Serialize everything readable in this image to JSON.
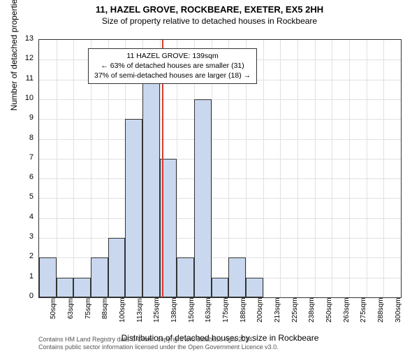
{
  "title_main": "11, HAZEL GROVE, ROCKBEARE, EXETER, EX5 2HH",
  "title_sub": "Size of property relative to detached houses in Rockbeare",
  "ylabel": "Number of detached properties",
  "xlabel": "Distribution of detached houses by size in Rockbeare",
  "chart": {
    "type": "histogram",
    "ylim": [
      0,
      13
    ],
    "ytick_step": 1,
    "x_categories": [
      "50sqm",
      "63sqm",
      "75sqm",
      "88sqm",
      "100sqm",
      "113sqm",
      "125sqm",
      "138sqm",
      "150sqm",
      "163sqm",
      "175sqm",
      "188sqm",
      "200sqm",
      "213sqm",
      "225sqm",
      "238sqm",
      "250sqm",
      "263sqm",
      "275sqm",
      "288sqm",
      "300sqm"
    ],
    "bars": [
      2,
      1,
      1,
      2,
      3,
      9,
      11,
      7,
      2,
      10,
      1,
      2,
      1,
      0,
      0,
      0,
      0,
      0,
      0,
      0,
      0
    ],
    "bar_fill": "#c9d8ef",
    "bar_border": "#333333",
    "background": "#ffffff",
    "grid_color": "#e0e0e0",
    "marker_value_sqm": 139,
    "x_min_sqm": 50,
    "x_bin_sqm": 12.5,
    "marker_color": "#d43a2f"
  },
  "info_box": {
    "line1": "11 HAZEL GROVE: 139sqm",
    "line2": "← 63% of detached houses are smaller (31)",
    "line3": "37% of semi-detached houses are larger (18) →"
  },
  "attribution": {
    "line1": "Contains HM Land Registry data © Crown copyright and database right 2024.",
    "line2": "Contains public sector information licensed under the Open Government Licence v3.0."
  }
}
